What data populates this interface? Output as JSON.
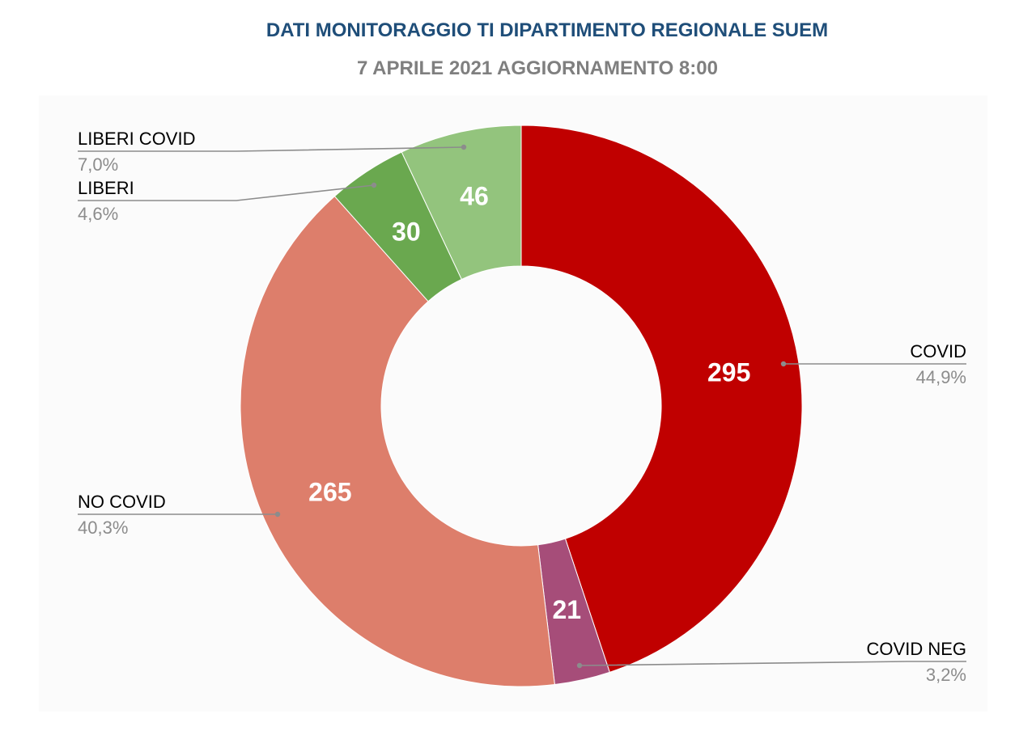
{
  "chart_data": {
    "type": "pie",
    "title": "DATI MONITORAGGIO TI DIPARTIMENTO REGIONALE SUEM",
    "subtitle": "7 APRILE 2021 AGGIORNAMENTO 8:00",
    "donut": true,
    "slices": [
      {
        "label": "COVID",
        "value": 295,
        "percent": "44,9%",
        "color": "#C00000"
      },
      {
        "label": "COVID NEG",
        "value": 21,
        "percent": "3,2%",
        "color": "#A64D79"
      },
      {
        "label": "NO COVID",
        "value": 265,
        "percent": "40,3%",
        "color": "#DD7E6B"
      },
      {
        "label": "LIBERI",
        "value": 30,
        "percent": "4,6%",
        "color": "#6AA84F"
      },
      {
        "label": "LIBERI COVID",
        "value": 46,
        "percent": "7,0%",
        "color": "#93C47D"
      }
    ]
  }
}
